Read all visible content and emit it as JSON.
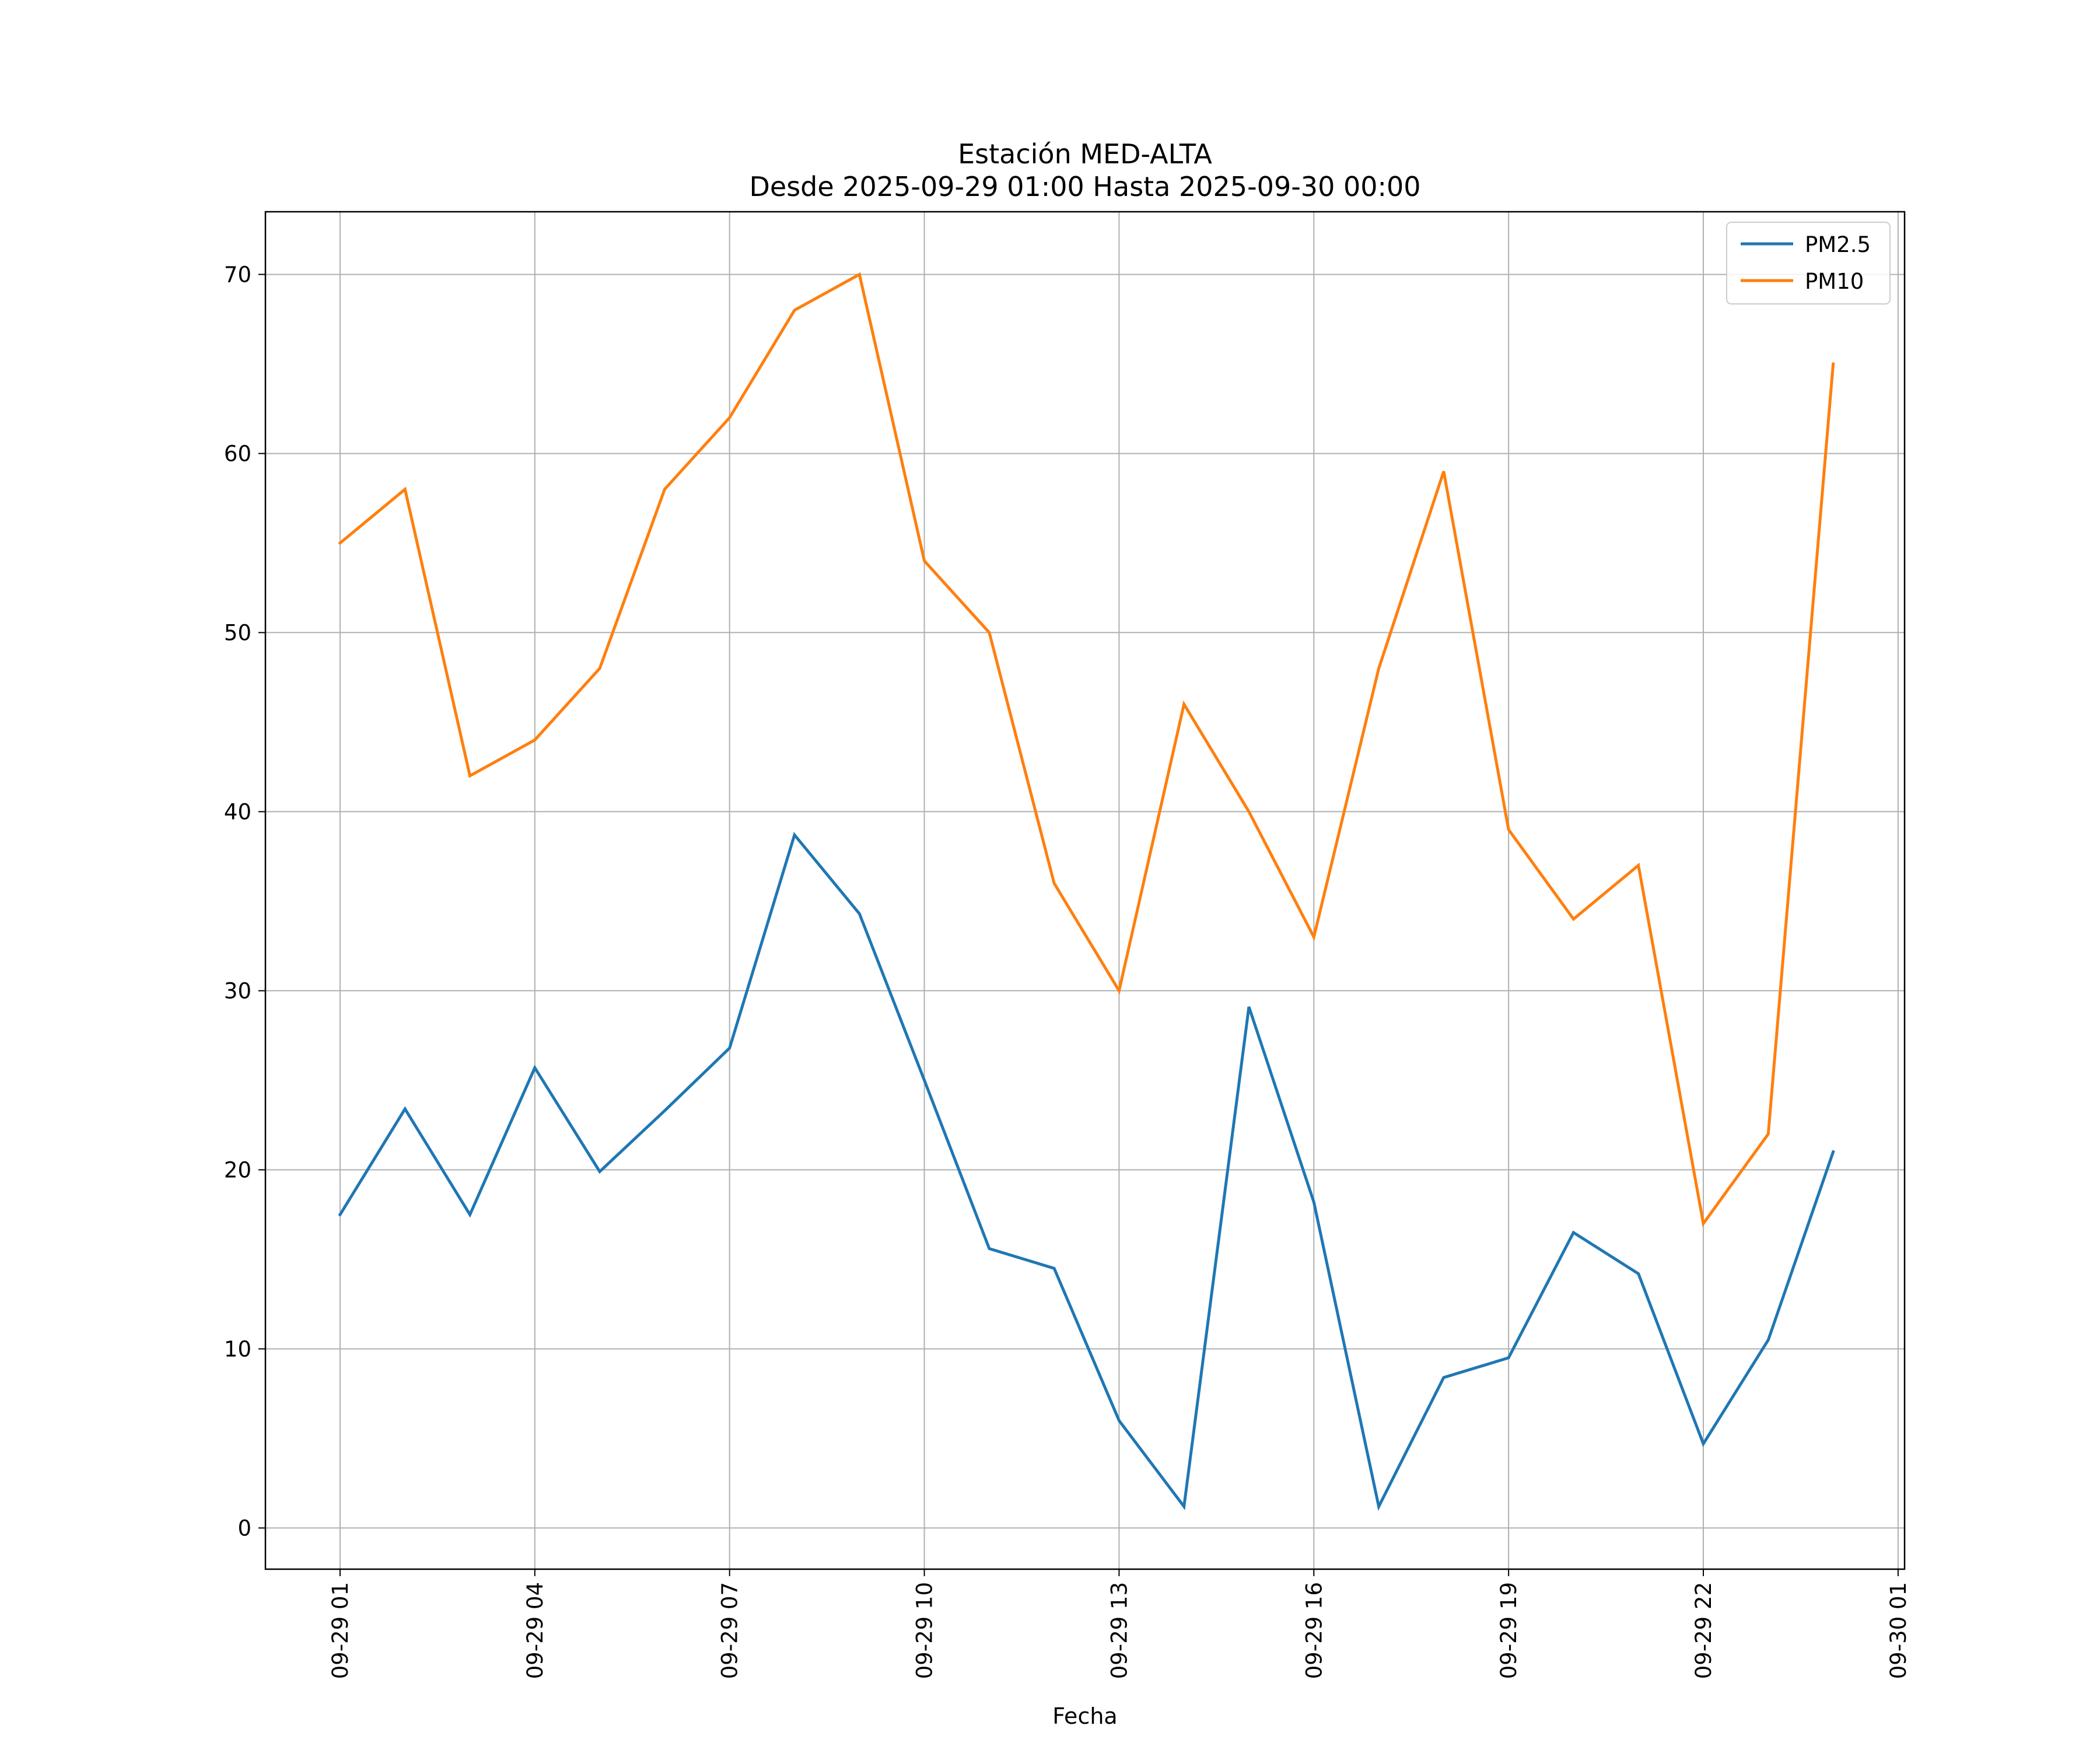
{
  "chart_data": {
    "type": "line",
    "title": "Estación MED-ALTA",
    "subtitle": "Desde 2025-09-29 01:00 Hasta 2025-09-30 00:00",
    "xlabel": "Fecha",
    "ylabel": "",
    "x_hours": [
      1,
      2,
      3,
      4,
      5,
      6,
      7,
      8,
      9,
      10,
      11,
      12,
      13,
      14,
      15,
      16,
      17,
      18,
      19,
      20,
      21,
      22,
      23,
      24
    ],
    "x_tick_hours": [
      1,
      4,
      7,
      10,
      13,
      16,
      19,
      22,
      25
    ],
    "x_tick_labels": [
      "09-29 01",
      "09-29 04",
      "09-29 07",
      "09-29 10",
      "09-29 13",
      "09-29 16",
      "09-29 19",
      "09-29 22",
      "09-30 01"
    ],
    "xlim": [
      -0.15,
      25.1
    ],
    "ylim": [
      -2.3,
      73.5
    ],
    "y_ticks": [
      0,
      10,
      20,
      30,
      40,
      50,
      60,
      70
    ],
    "y_tick_labels": [
      "0",
      "10",
      "20",
      "30",
      "40",
      "50",
      "60",
      "70"
    ],
    "grid": true,
    "legend_position": "top-right",
    "series": [
      {
        "name": "PM2.5",
        "color": "#1f77b4",
        "values": [
          17.5,
          23.4,
          17.5,
          25.7,
          19.9,
          23.3,
          26.8,
          38.7,
          34.3,
          25.0,
          15.6,
          14.5,
          6.0,
          1.2,
          29.1,
          18.2,
          1.2,
          8.4,
          9.5,
          16.5,
          14.2,
          4.7,
          10.5,
          21.0
        ]
      },
      {
        "name": "PM10",
        "color": "#ff7f0e",
        "values": [
          55,
          58,
          42,
          44,
          48,
          58,
          62,
          68,
          70,
          54,
          50,
          36,
          30,
          46,
          40,
          33,
          48,
          59,
          39,
          34,
          37,
          17,
          22,
          65
        ]
      }
    ]
  }
}
